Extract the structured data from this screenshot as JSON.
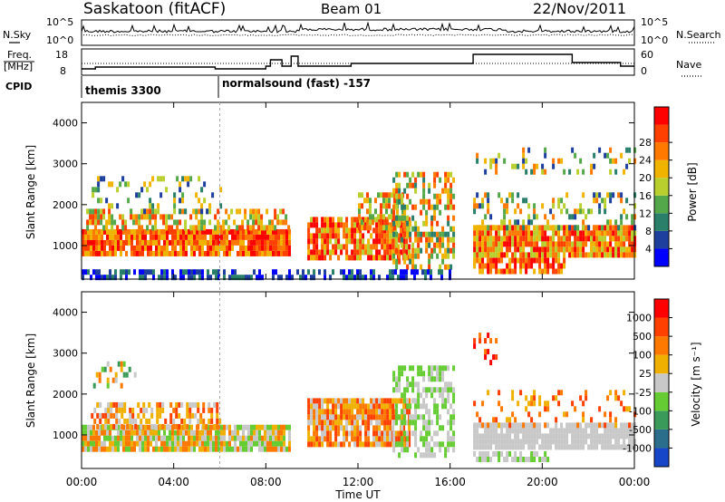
{
  "header": {
    "station": "Saskatoon (fitACF)",
    "beam": "Beam 01",
    "date": "22/Nov/2011"
  },
  "strip": {
    "nsky_label": "N.Sky",
    "nsearch_label": "N.Search",
    "freq_label_1": "Freq.",
    "freq_label_2": "[MHz]",
    "nave_label": "Nave",
    "cpid_label": "CPID",
    "nsky_ticks": [
      "10^5",
      "10^0"
    ],
    "nsearch_ticks": [
      "10^5",
      "10^0"
    ],
    "freq_ticks": [
      "18",
      "8"
    ],
    "nave_ticks": [
      "60",
      "0"
    ],
    "cpid_segments": [
      {
        "label": "themis 3300",
        "start_hour": 0
      },
      {
        "label": "normalsound (fast) -157",
        "start_hour": 6.0
      }
    ]
  },
  "chart_data": [
    {
      "type": "heatmap",
      "title": "",
      "parameter": "Power",
      "ylabel": "Slant Range [km]",
      "xlabel": "",
      "ylim": [
        180,
        4500
      ],
      "yticks": [
        1000,
        2000,
        3000,
        4000
      ],
      "xlim_hours": [
        0,
        24
      ],
      "colorbar": {
        "label": "Power [dB]",
        "ticks": [
          "4",
          "8",
          "12",
          "16",
          "20",
          "24",
          "28"
        ],
        "colors": [
          "#0000ff",
          "#1f3f9f",
          "#2a7f6a",
          "#55a84a",
          "#b9cf2e",
          "#f0b400",
          "#ff7800",
          "#ff4000",
          "#ff0000"
        ]
      }
    },
    {
      "type": "heatmap",
      "title": "",
      "parameter": "Velocity",
      "ylabel": "Slant Range [km]",
      "xlabel": "Time UT",
      "ylim": [
        180,
        4500
      ],
      "yticks": [
        1000,
        2000,
        3000,
        4000
      ],
      "xlim_hours": [
        0,
        24
      ],
      "xticks": [
        "00:00",
        "04:00",
        "08:00",
        "12:00",
        "16:00",
        "20:00",
        "00:00"
      ],
      "colorbar": {
        "label": "Velocity [m s⁻¹]",
        "ticks": [
          "1000",
          "500",
          "100",
          "25",
          "-25",
          "-100",
          "-500",
          "-1000"
        ],
        "colors": [
          "#1846c8",
          "#2a6e8c",
          "#3a9a5a",
          "#66cc33",
          "#c8c8c8",
          "#f0b000",
          "#ff7800",
          "#ff4000",
          "#ff0000"
        ]
      }
    }
  ]
}
